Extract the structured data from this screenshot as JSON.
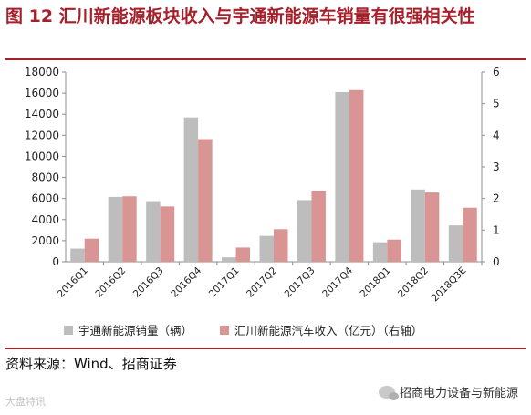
{
  "title": "图 12  汇川新能源板块收入与宇通新能源车销量有很强相关性",
  "source": "资料来源：Wind、招商证券",
  "wechat_account": "招商电力设备与新能源",
  "watermark": "大盘特讯",
  "colors": {
    "title": "#a5202b",
    "sales_bar": "#bdbdbd",
    "revenue_bar": "#d99594",
    "axis": "#8c8c8c"
  },
  "icons": {
    "wechat": "wechat-icon"
  },
  "chart_data": {
    "type": "bar",
    "categories": [
      "2016Q1",
      "2016Q2",
      "2016Q3",
      "2016Q4",
      "2017Q1",
      "2017Q2",
      "2017Q3",
      "2017Q4",
      "2018Q1",
      "2018Q2",
      "2018Q3E"
    ],
    "series": [
      {
        "name": "宇通新能源销量（辆）",
        "axis": "left",
        "values": [
          1250,
          6150,
          5750,
          13700,
          420,
          2450,
          5850,
          16100,
          1850,
          6850,
          3450
        ]
      },
      {
        "name": "汇川新能源汽车收入（亿元）（右轴）",
        "axis": "right",
        "values": [
          0.73,
          2.07,
          1.75,
          3.88,
          0.45,
          1.03,
          2.25,
          5.43,
          0.7,
          2.19,
          1.71
        ]
      }
    ],
    "y_left": {
      "min": 0,
      "max": 18000,
      "ticks": [
        "0",
        "2000",
        "4000",
        "6000",
        "8000",
        "10000",
        "12000",
        "14000",
        "16000",
        "18000"
      ]
    },
    "y_right": {
      "min": 0,
      "max": 6,
      "ticks": [
        "0",
        "1",
        "2",
        "3",
        "4",
        "5",
        "6"
      ]
    },
    "grid": false,
    "legend_position": "bottom"
  }
}
